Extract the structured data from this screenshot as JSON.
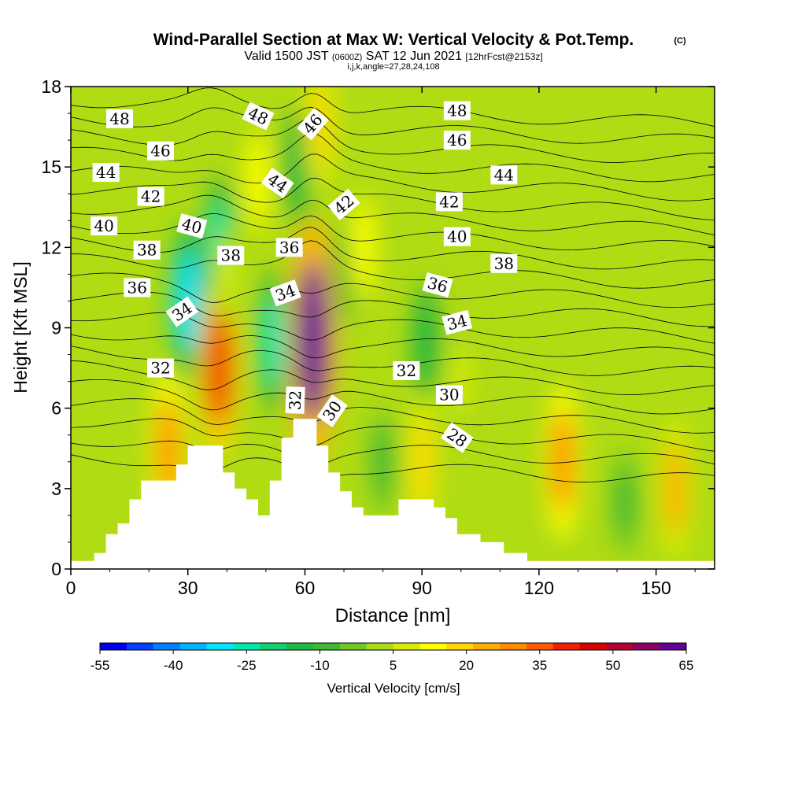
{
  "header": {
    "title": "Wind-Parallel Section at Max W: Vertical Velocity & Pot.Temp.",
    "copyright": "(C)",
    "subtitle_valid": "Valid 1500 JST",
    "subtitle_utc": "(0600Z)",
    "subtitle_date": "SAT 12 Jun 2021",
    "subtitle_fcst": "[12hrFcst@2153z]",
    "indices": "i,j,k,angle=27,28,24,108"
  },
  "chart_data": {
    "type": "heatmap",
    "title": "Wind-Parallel Section at Max W: Vertical Velocity & Pot.Temp.",
    "xlabel": "Distance [nm]",
    "ylabel": "Height [Kft MSL]",
    "xlim": [
      0,
      165
    ],
    "ylim": [
      0,
      18
    ],
    "x_ticks": [
      "0",
      "30",
      "60",
      "90",
      "120",
      "150"
    ],
    "y_ticks": [
      "0",
      "3",
      "6",
      "9",
      "12",
      "15",
      "18"
    ],
    "colorbar": {
      "label": "Vertical Velocity [cm/s]",
      "tick_labels": [
        "-55",
        "-40",
        "-25",
        "-10",
        "5",
        "20",
        "35",
        "50",
        "65"
      ],
      "colors": [
        "#0000f0",
        "#0040ff",
        "#0080ff",
        "#00b4ff",
        "#00e6ff",
        "#00e8b0",
        "#10d070",
        "#20b840",
        "#40b830",
        "#70c828",
        "#a8dc18",
        "#d8ec00",
        "#ffff00",
        "#ffd800",
        "#ffb000",
        "#ff8c00",
        "#ff5a00",
        "#f02000",
        "#dc0000",
        "#b40032",
        "#8c0064",
        "#640096"
      ]
    },
    "updrafts": [
      {
        "x": 62,
        "y": 8.5,
        "w": 65
      },
      {
        "x": 38,
        "y": 7.5,
        "w": 40
      },
      {
        "x": 40,
        "y": 11,
        "w": 5
      },
      {
        "x": 75,
        "y": 12,
        "w": 15
      },
      {
        "x": 25,
        "y": 4.5,
        "w": 30
      },
      {
        "x": 90,
        "y": 4,
        "w": 20
      },
      {
        "x": 126,
        "y": 4,
        "w": 30
      },
      {
        "x": 155,
        "y": 3,
        "w": 25
      },
      {
        "x": 64,
        "y": 16.5,
        "w": 20
      },
      {
        "x": 48,
        "y": 14.5,
        "w": 15
      },
      {
        "x": 100,
        "y": 7,
        "w": 10
      }
    ],
    "downdrafts": [
      {
        "x": 30,
        "y": 10,
        "w": -30
      },
      {
        "x": 38,
        "y": 12,
        "w": -25
      },
      {
        "x": 52,
        "y": 8.5,
        "w": -25
      },
      {
        "x": 58,
        "y": 15,
        "w": -15
      },
      {
        "x": 80,
        "y": 4,
        "w": -10
      },
      {
        "x": 91,
        "y": 8.5,
        "w": -15
      },
      {
        "x": 142,
        "y": 2.5,
        "w": -10
      },
      {
        "x": 70,
        "y": 11,
        "w": -10
      }
    ],
    "terrain": [
      [
        0,
        0.3
      ],
      [
        6,
        0.3
      ],
      [
        6,
        0.6
      ],
      [
        9,
        0.6
      ],
      [
        9,
        1.3
      ],
      [
        12,
        1.3
      ],
      [
        12,
        1.7
      ],
      [
        15,
        1.7
      ],
      [
        15,
        2.6
      ],
      [
        18,
        2.6
      ],
      [
        18,
        3.3
      ],
      [
        27,
        3.3
      ],
      [
        27,
        3.9
      ],
      [
        30,
        3.9
      ],
      [
        30,
        4.6
      ],
      [
        39,
        4.6
      ],
      [
        39,
        3.6
      ],
      [
        42,
        3.6
      ],
      [
        42,
        3.0
      ],
      [
        45,
        3.0
      ],
      [
        45,
        2.6
      ],
      [
        48,
        2.6
      ],
      [
        48,
        2.0
      ],
      [
        51,
        2.0
      ],
      [
        51,
        3.3
      ],
      [
        54,
        3.3
      ],
      [
        54,
        4.9
      ],
      [
        57,
        4.9
      ],
      [
        57,
        5.6
      ],
      [
        63,
        5.6
      ],
      [
        63,
        4.6
      ],
      [
        66,
        4.6
      ],
      [
        66,
        3.6
      ],
      [
        69,
        3.6
      ],
      [
        69,
        2.9
      ],
      [
        72,
        2.9
      ],
      [
        72,
        2.3
      ],
      [
        75,
        2.3
      ],
      [
        75,
        2.0
      ],
      [
        84,
        2.0
      ],
      [
        84,
        2.6
      ],
      [
        93,
        2.6
      ],
      [
        93,
        2.3
      ],
      [
        96,
        2.3
      ],
      [
        96,
        1.9
      ],
      [
        99,
        1.9
      ],
      [
        99,
        1.3
      ],
      [
        105,
        1.3
      ],
      [
        105,
        1.0
      ],
      [
        111,
        1.0
      ],
      [
        111,
        0.6
      ],
      [
        117,
        0.6
      ],
      [
        117,
        0.3
      ],
      [
        165,
        0.3
      ]
    ],
    "theta_levels": [
      28,
      29,
      30,
      31,
      32,
      33,
      34,
      35,
      36,
      37,
      38,
      39,
      40,
      41,
      42,
      43,
      44,
      45,
      46,
      47,
      48
    ],
    "theta_labels": [
      {
        "text": "48",
        "x": 12.5,
        "y": 16.8,
        "r": 0
      },
      {
        "text": "46",
        "x": 23,
        "y": 15.6,
        "r": 0
      },
      {
        "text": "44",
        "x": 9,
        "y": 14.8,
        "r": 0
      },
      {
        "text": "42",
        "x": 20.5,
        "y": 13.9,
        "r": 0
      },
      {
        "text": "40",
        "x": 8.5,
        "y": 12.8,
        "r": 0
      },
      {
        "text": "38",
        "x": 19.5,
        "y": 11.9,
        "r": 0
      },
      {
        "text": "36",
        "x": 17,
        "y": 10.5,
        "r": 0
      },
      {
        "text": "34",
        "x": 28.5,
        "y": 9.6,
        "r": -35
      },
      {
        "text": "32",
        "x": 23,
        "y": 7.5,
        "r": 0
      },
      {
        "text": "40",
        "x": 31,
        "y": 12.8,
        "r": 15
      },
      {
        "text": "38",
        "x": 41,
        "y": 11.7,
        "r": 0
      },
      {
        "text": "48",
        "x": 48,
        "y": 16.9,
        "r": 25
      },
      {
        "text": "44",
        "x": 53,
        "y": 14.4,
        "r": 35
      },
      {
        "text": "36",
        "x": 56,
        "y": 12,
        "r": 0
      },
      {
        "text": "34",
        "x": 55,
        "y": 10.3,
        "r": -20
      },
      {
        "text": "46",
        "x": 62,
        "y": 16.6,
        "r": -50
      },
      {
        "text": "42",
        "x": 70,
        "y": 13.6,
        "r": -40
      },
      {
        "text": "32",
        "x": 57.5,
        "y": 6.3,
        "r": -88
      },
      {
        "text": "30",
        "x": 67,
        "y": 5.9,
        "r": -55
      },
      {
        "text": "48",
        "x": 99,
        "y": 17.1,
        "r": 0
      },
      {
        "text": "46",
        "x": 99,
        "y": 16,
        "r": 0
      },
      {
        "text": "44",
        "x": 111,
        "y": 14.7,
        "r": 0
      },
      {
        "text": "42",
        "x": 97,
        "y": 13.7,
        "r": 0
      },
      {
        "text": "40",
        "x": 99,
        "y": 12.4,
        "r": 0
      },
      {
        "text": "38",
        "x": 111,
        "y": 11.4,
        "r": 0
      },
      {
        "text": "36",
        "x": 94,
        "y": 10.6,
        "r": 15
      },
      {
        "text": "34",
        "x": 99,
        "y": 9.2,
        "r": -15
      },
      {
        "text": "32",
        "x": 86,
        "y": 7.4,
        "r": 0
      },
      {
        "text": "30",
        "x": 97,
        "y": 6.5,
        "r": 0
      },
      {
        "text": "28",
        "x": 99,
        "y": 4.9,
        "r": 35
      }
    ]
  }
}
